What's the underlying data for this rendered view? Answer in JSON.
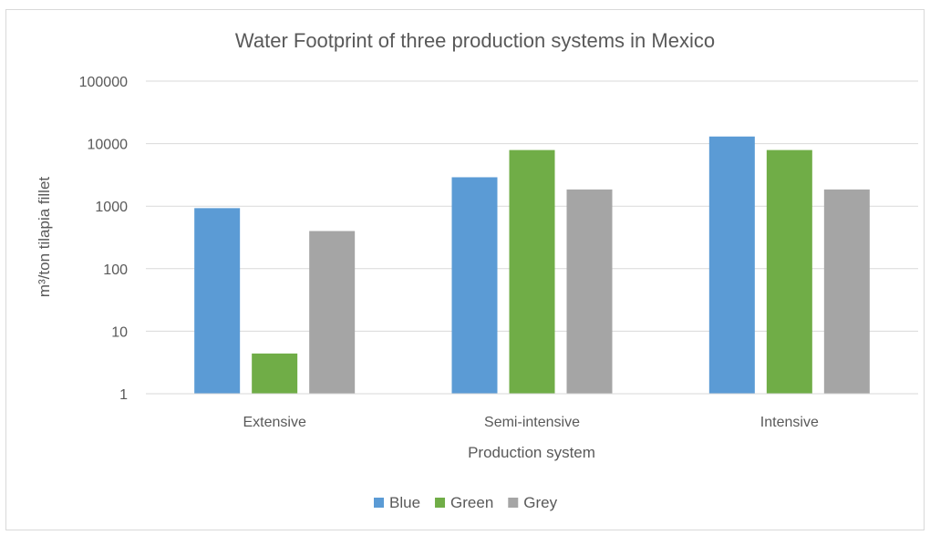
{
  "chart_data": {
    "type": "bar",
    "title": "Water Footprint of three production systems in Mexico",
    "xlabel": "Production system",
    "ylabel": "m³/ton tilapia fillet",
    "y_scale": "log",
    "ylim": [
      1,
      100000
    ],
    "y_ticks": [
      "1",
      "10",
      "100",
      "1000",
      "10000",
      "100000"
    ],
    "grid": true,
    "legend_position": "bottom",
    "categories": [
      "Extensive",
      "Semi-intensive",
      "Intensive"
    ],
    "series": [
      {
        "name": "Blue",
        "color": "#5b9bd5",
        "values": [
          930,
          2900,
          13000
        ]
      },
      {
        "name": "Green",
        "color": "#70ad47",
        "values": [
          4.4,
          7900,
          7900
        ]
      },
      {
        "name": "Grey",
        "color": "#a5a5a5",
        "values": [
          400,
          1850,
          1850
        ]
      }
    ]
  }
}
